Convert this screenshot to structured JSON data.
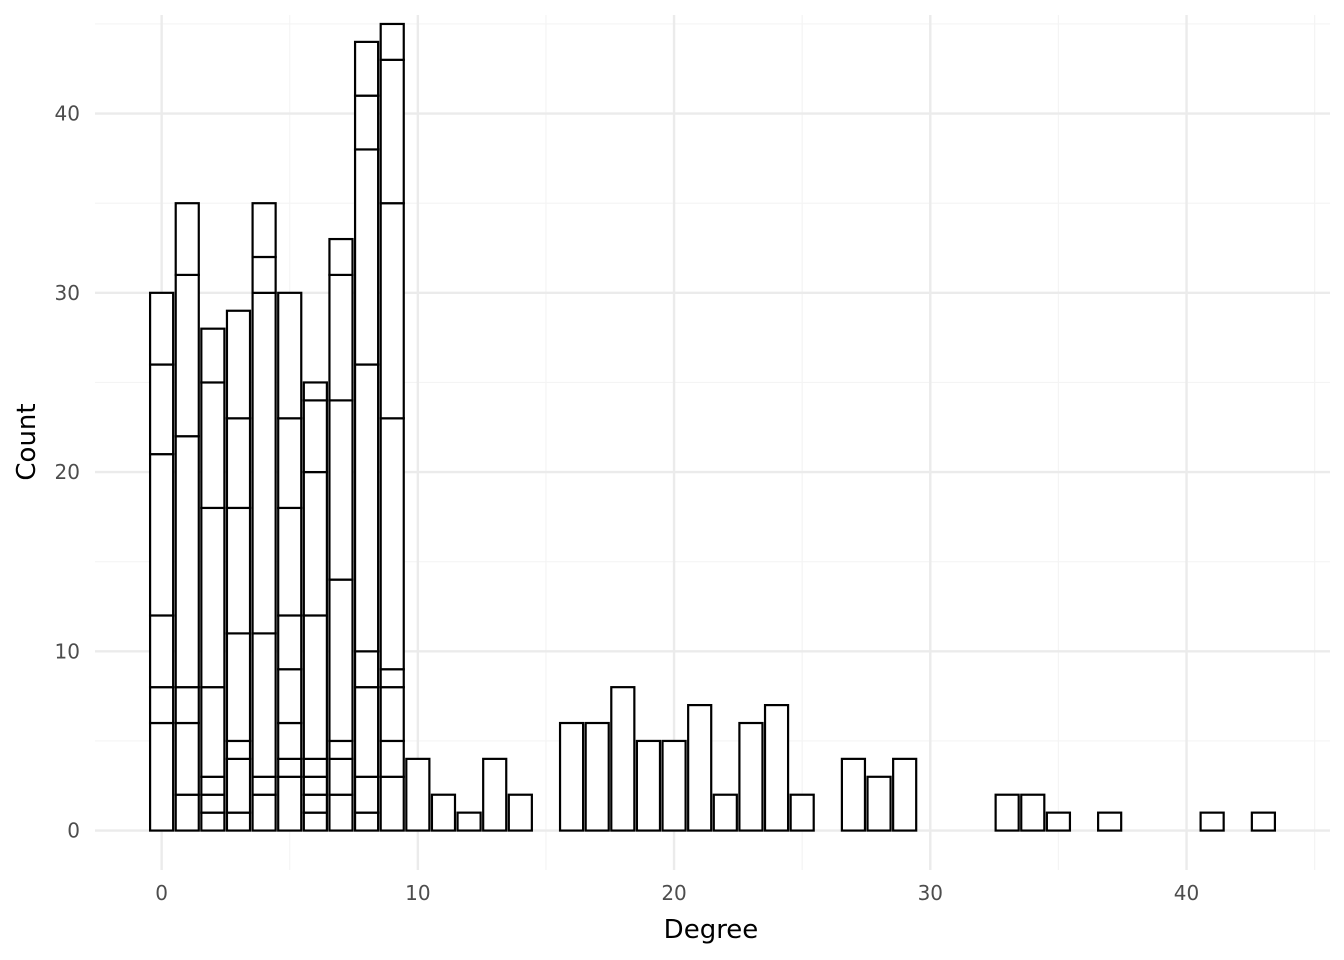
{
  "chart_data": {
    "type": "bar",
    "subtype": "stacked-histogram",
    "xlabel": "Degree",
    "ylabel": "Count",
    "xlim": [
      -2.6,
      45.6
    ],
    "ylim": [
      -2.2,
      45.5
    ],
    "x_ticks": [
      0,
      10,
      20,
      30,
      40
    ],
    "y_ticks": [
      0,
      10,
      20,
      30,
      40
    ],
    "grid": true,
    "legend": "none",
    "bar_fill": "#ffffff",
    "bar_stroke": "#000000",
    "grid_major_color": "#ebebeb",
    "grid_minor_color": "#f4f4f4",
    "bins": [
      {
        "x": 0,
        "stack_boundaries": [
          6,
          8,
          12,
          21,
          26,
          30
        ]
      },
      {
        "x": 1,
        "stack_boundaries": [
          2,
          6,
          8,
          22,
          31,
          35
        ]
      },
      {
        "x": 2,
        "stack_boundaries": [
          1,
          2,
          3,
          8,
          18,
          25,
          28
        ]
      },
      {
        "x": 3,
        "stack_boundaries": [
          1,
          4,
          5,
          11,
          18,
          23,
          29
        ]
      },
      {
        "x": 4,
        "stack_boundaries": [
          2,
          3,
          11,
          30,
          32,
          35
        ]
      },
      {
        "x": 5,
        "stack_boundaries": [
          3,
          4,
          6,
          9,
          12,
          18,
          23,
          30
        ]
      },
      {
        "x": 6,
        "stack_boundaries": [
          1,
          2,
          3,
          4,
          12,
          20,
          24,
          25
        ]
      },
      {
        "x": 7,
        "stack_boundaries": [
          2,
          4,
          5,
          14,
          24,
          31,
          33
        ]
      },
      {
        "x": 8,
        "stack_boundaries": [
          1,
          3,
          8,
          10,
          26,
          38,
          41,
          44
        ]
      },
      {
        "x": 9,
        "stack_boundaries": [
          3,
          5,
          8,
          9,
          23,
          35,
          43,
          45
        ]
      },
      {
        "x": 10,
        "stack_boundaries": [
          4
        ]
      },
      {
        "x": 11,
        "stack_boundaries": [
          2
        ]
      },
      {
        "x": 12,
        "stack_boundaries": [
          1
        ]
      },
      {
        "x": 13,
        "stack_boundaries": [
          4
        ]
      },
      {
        "x": 14,
        "stack_boundaries": [
          2
        ]
      },
      {
        "x": 16,
        "stack_boundaries": [
          6
        ]
      },
      {
        "x": 17,
        "stack_boundaries": [
          6
        ]
      },
      {
        "x": 18,
        "stack_boundaries": [
          8
        ]
      },
      {
        "x": 19,
        "stack_boundaries": [
          5
        ]
      },
      {
        "x": 20,
        "stack_boundaries": [
          5
        ]
      },
      {
        "x": 21,
        "stack_boundaries": [
          7
        ]
      },
      {
        "x": 22,
        "stack_boundaries": [
          2
        ]
      },
      {
        "x": 23,
        "stack_boundaries": [
          6
        ]
      },
      {
        "x": 24,
        "stack_boundaries": [
          7
        ]
      },
      {
        "x": 25,
        "stack_boundaries": [
          2
        ]
      },
      {
        "x": 27,
        "stack_boundaries": [
          4
        ]
      },
      {
        "x": 28,
        "stack_boundaries": [
          3
        ]
      },
      {
        "x": 29,
        "stack_boundaries": [
          4
        ]
      },
      {
        "x": 33,
        "stack_boundaries": [
          2
        ]
      },
      {
        "x": 34,
        "stack_boundaries": [
          2
        ]
      },
      {
        "x": 35,
        "stack_boundaries": [
          1
        ]
      },
      {
        "x": 37,
        "stack_boundaries": [
          1
        ]
      },
      {
        "x": 41,
        "stack_boundaries": [
          1
        ]
      },
      {
        "x": 43,
        "stack_boundaries": [
          1
        ]
      }
    ]
  }
}
